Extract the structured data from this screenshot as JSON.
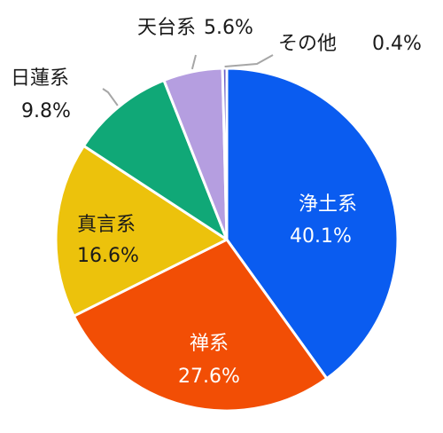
{
  "chart_data": {
    "type": "pie",
    "slices": [
      {
        "name": "浄土系",
        "value": 40.1,
        "label": "40.1%",
        "color": "#0a5cf0"
      },
      {
        "name": "禅系",
        "value": 27.6,
        "label": "27.6%",
        "color": "#f24e05"
      },
      {
        "name": "真言系",
        "value": 16.6,
        "label": "16.6%",
        "color": "#ecc20c"
      },
      {
        "name": "日蓮系",
        "value": 9.8,
        "label": "9.8%",
        "color": "#10a877"
      },
      {
        "name": "天台系",
        "value": 5.6,
        "label": "5.6%",
        "color": "#b59ee0"
      },
      {
        "name": "その他",
        "value": 0.4,
        "label": "0.4%",
        "color": "#6a5fc8"
      }
    ]
  }
}
